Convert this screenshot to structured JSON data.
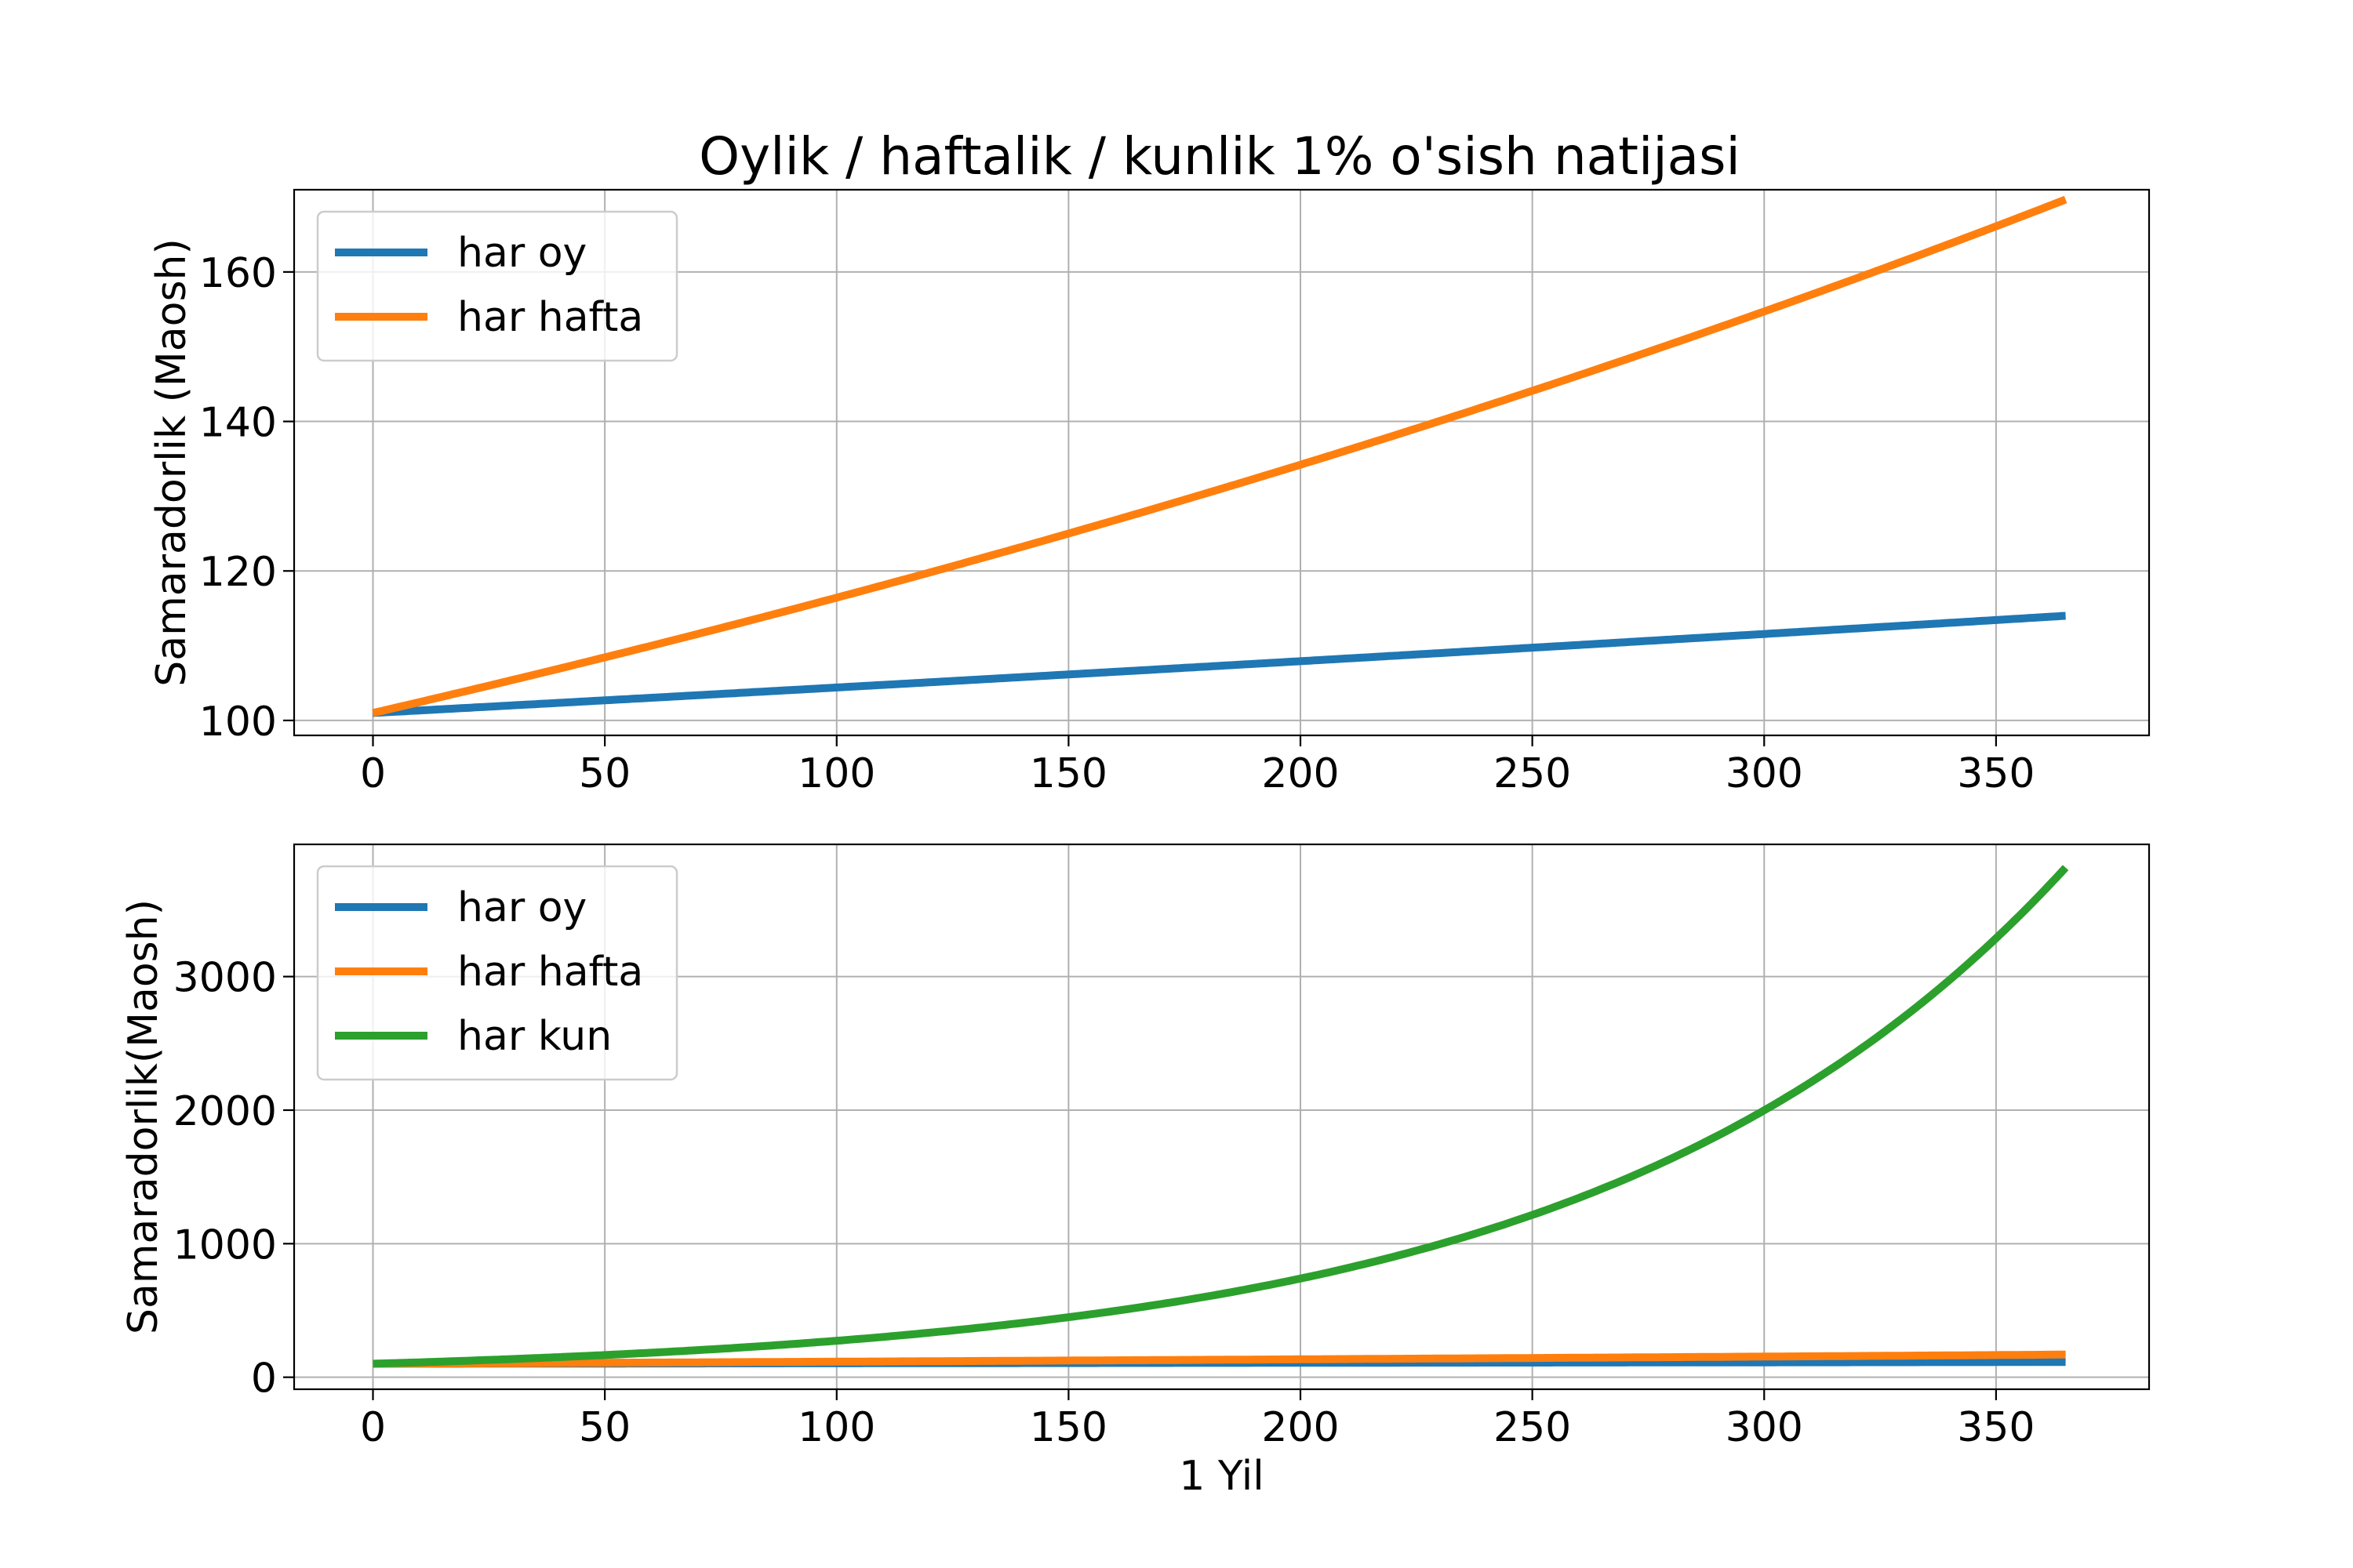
{
  "chart_data": [
    {
      "type": "line",
      "title": "Oylik / haftalik / kunlik  1%  o'sish natijasi",
      "xlabel": "",
      "ylabel": "Samaradorlik (Maosh)",
      "xlim": [
        -17,
        383
      ],
      "ylim": [
        98,
        171
      ],
      "xticks": [
        0,
        50,
        100,
        150,
        200,
        250,
        300,
        350
      ],
      "yticks": [
        100,
        120,
        140,
        160
      ],
      "grid": true,
      "legend": "top-left",
      "series": [
        {
          "name": "har oy",
          "color": "#1f77b4",
          "rate": 0.01,
          "period": 30,
          "start": 101,
          "x_end": 365
        },
        {
          "name": "har hafta",
          "color": "#ff7f0e",
          "rate": 0.01,
          "period": 7,
          "start": 101,
          "x_end": 365
        }
      ]
    },
    {
      "type": "line",
      "title": "",
      "xlabel": "1 Yil",
      "ylabel": "Samaradorlik(Maosh)",
      "xlim": [
        -17,
        383
      ],
      "ylim": [
        -90,
        3990
      ],
      "xticks": [
        0,
        50,
        100,
        150,
        200,
        250,
        300,
        350
      ],
      "yticks": [
        0,
        1000,
        2000,
        3000
      ],
      "grid": true,
      "legend": "top-left",
      "series": [
        {
          "name": "har oy",
          "color": "#1f77b4",
          "rate": 0.01,
          "period": 30,
          "start": 101,
          "x_end": 365
        },
        {
          "name": "har hafta",
          "color": "#ff7f0e",
          "rate": 0.01,
          "period": 7,
          "start": 101,
          "x_end": 365
        },
        {
          "name": "har kun",
          "color": "#2ca02c",
          "rate": 0.01,
          "period": 1,
          "start": 101,
          "x_end": 365
        }
      ]
    }
  ]
}
